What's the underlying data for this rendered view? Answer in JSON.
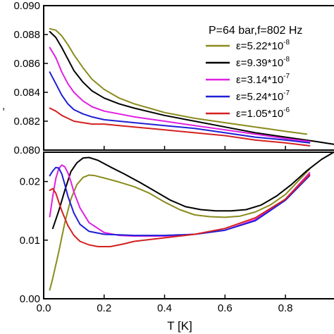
{
  "chart_data": [
    {
      "type": "line",
      "panel": "top",
      "title": "P=64 bar,f=802 Hz",
      "xlabel": "",
      "ylabel": "",
      "xlim": [
        0.0,
        0.97
      ],
      "ylim": [
        0.08,
        0.09
      ],
      "yticks": [
        "0.080",
        "0.082",
        "0.084",
        "0.086",
        "0.088",
        "0.090"
      ],
      "legend_position": "top-right",
      "grid": false,
      "series": [
        {
          "name": "ε=5.22*10",
          "exp": "-8",
          "color": "#8b8b1e",
          "x": [
            0.02,
            0.04,
            0.06,
            0.08,
            0.1,
            0.13,
            0.16,
            0.2,
            0.25,
            0.3,
            0.35,
            0.4,
            0.5,
            0.6,
            0.7,
            0.8,
            0.87
          ],
          "y": [
            0.0884,
            0.0883,
            0.0879,
            0.0873,
            0.0866,
            0.0857,
            0.0849,
            0.0842,
            0.0836,
            0.0832,
            0.0829,
            0.0826,
            0.0822,
            0.0819,
            0.0816,
            0.0813,
            0.0811
          ]
        },
        {
          "name": "ε=9.39*10",
          "exp": "-8",
          "color": "#000000",
          "x": [
            0.02,
            0.04,
            0.06,
            0.08,
            0.1,
            0.13,
            0.16,
            0.2,
            0.25,
            0.3,
            0.4,
            0.5,
            0.6,
            0.7,
            0.8,
            0.9,
            0.96
          ],
          "y": [
            0.0882,
            0.0878,
            0.0871,
            0.0863,
            0.0855,
            0.0847,
            0.0841,
            0.0836,
            0.0832,
            0.0829,
            0.0824,
            0.082,
            0.0816,
            0.0812,
            0.0809,
            0.0806,
            0.0804
          ]
        },
        {
          "name": "ε=3.14*10",
          "exp": "-7",
          "color": "#e020e0",
          "x": [
            0.02,
            0.04,
            0.06,
            0.08,
            0.1,
            0.13,
            0.16,
            0.2,
            0.25,
            0.3,
            0.4,
            0.5,
            0.6,
            0.7,
            0.8,
            0.88
          ],
          "y": [
            0.0871,
            0.0864,
            0.0854,
            0.0846,
            0.084,
            0.0834,
            0.083,
            0.0827,
            0.0825,
            0.0823,
            0.082,
            0.0817,
            0.0814,
            0.0811,
            0.0808,
            0.0806
          ]
        },
        {
          "name": "ε=5.24*10",
          "exp": "-7",
          "color": "#1f1fd6",
          "x": [
            0.02,
            0.04,
            0.06,
            0.08,
            0.1,
            0.13,
            0.16,
            0.2,
            0.25,
            0.3,
            0.4,
            0.5,
            0.6,
            0.7,
            0.8,
            0.88
          ],
          "y": [
            0.0854,
            0.0846,
            0.0838,
            0.0832,
            0.0828,
            0.0825,
            0.0823,
            0.0821,
            0.082,
            0.0819,
            0.0817,
            0.0815,
            0.0812,
            0.0809,
            0.0807,
            0.0805
          ]
        },
        {
          "name": "ε=1.05*10",
          "exp": "-6",
          "color": "#d42020",
          "x": [
            0.02,
            0.04,
            0.06,
            0.08,
            0.1,
            0.13,
            0.16,
            0.2,
            0.25,
            0.3,
            0.4,
            0.5,
            0.6,
            0.7,
            0.8,
            0.88
          ],
          "y": [
            0.0829,
            0.0827,
            0.0824,
            0.0822,
            0.082,
            0.0819,
            0.0818,
            0.0818,
            0.0817,
            0.0816,
            0.0814,
            0.0812,
            0.081,
            0.0807,
            0.0805,
            0.0803
          ]
        }
      ]
    },
    {
      "type": "line",
      "panel": "bottom",
      "title": "",
      "xlabel": "T [K]",
      "ylabel": "",
      "xlim": [
        0.0,
        0.97
      ],
      "ylim": [
        0.0,
        0.025
      ],
      "xticks": [
        "0.0",
        "0.2",
        "0.4",
        "0.6",
        "0.8"
      ],
      "yticks": [
        "0.00",
        "0.01",
        "0.02"
      ],
      "grid": false,
      "series": [
        {
          "name": "ε=5.22*10",
          "exp": "-8",
          "color": "#8b8b1e",
          "x": [
            0.02,
            0.03,
            0.05,
            0.07,
            0.09,
            0.11,
            0.13,
            0.15,
            0.17,
            0.2,
            0.25,
            0.3,
            0.35,
            0.4,
            0.45,
            0.5,
            0.55,
            0.6,
            0.65,
            0.7,
            0.75,
            0.8,
            0.85,
            0.88
          ],
          "y": [
            0.0015,
            0.0035,
            0.008,
            0.013,
            0.017,
            0.0195,
            0.0207,
            0.0211,
            0.021,
            0.0206,
            0.0199,
            0.0191,
            0.018,
            0.0165,
            0.0152,
            0.0143,
            0.014,
            0.0139,
            0.0141,
            0.0148,
            0.016,
            0.0178,
            0.0205,
            0.0221
          ]
        },
        {
          "name": "ε=9.39*10",
          "exp": "-8",
          "color": "#000000",
          "x": [
            0.03,
            0.05,
            0.07,
            0.09,
            0.11,
            0.13,
            0.15,
            0.18,
            0.22,
            0.27,
            0.32,
            0.37,
            0.42,
            0.47,
            0.52,
            0.57,
            0.62,
            0.67,
            0.72,
            0.77,
            0.82,
            0.87,
            0.92,
            0.96
          ],
          "y": [
            0.012,
            0.015,
            0.0185,
            0.0217,
            0.0232,
            0.024,
            0.0241,
            0.0236,
            0.0225,
            0.0212,
            0.0198,
            0.0183,
            0.0168,
            0.0157,
            0.0152,
            0.015,
            0.015,
            0.0152,
            0.016,
            0.0175,
            0.0195,
            0.0218,
            0.0238,
            0.025
          ]
        },
        {
          "name": "ε=3.14*10",
          "exp": "-7",
          "color": "#e020e0",
          "x": [
            0.02,
            0.03,
            0.04,
            0.05,
            0.06,
            0.07,
            0.08,
            0.09,
            0.1,
            0.12,
            0.15,
            0.2,
            0.25,
            0.3,
            0.4,
            0.5,
            0.6,
            0.7,
            0.8,
            0.88
          ],
          "y": [
            0.014,
            0.0175,
            0.0205,
            0.0222,
            0.0228,
            0.0225,
            0.0215,
            0.02,
            0.0182,
            0.0155,
            0.013,
            0.0113,
            0.0108,
            0.0107,
            0.0107,
            0.011,
            0.0117,
            0.0135,
            0.017,
            0.0215
          ]
        },
        {
          "name": "ε=5.24*10",
          "exp": "-7",
          "color": "#1f1fd6",
          "x": [
            0.02,
            0.03,
            0.04,
            0.05,
            0.06,
            0.07,
            0.08,
            0.1,
            0.12,
            0.15,
            0.2,
            0.25,
            0.3,
            0.4,
            0.5,
            0.6,
            0.7,
            0.8,
            0.88
          ],
          "y": [
            0.021,
            0.0218,
            0.0224,
            0.0223,
            0.0213,
            0.0195,
            0.0175,
            0.0146,
            0.0127,
            0.0115,
            0.011,
            0.0109,
            0.0108,
            0.0108,
            0.011,
            0.0117,
            0.0133,
            0.0168,
            0.021
          ]
        },
        {
          "name": "ε=1.05*10",
          "exp": "-6",
          "color": "#d42020",
          "x": [
            0.02,
            0.03,
            0.04,
            0.05,
            0.06,
            0.08,
            0.1,
            0.12,
            0.15,
            0.18,
            0.22,
            0.26,
            0.3,
            0.4,
            0.5,
            0.6,
            0.7,
            0.8,
            0.88
          ],
          "y": [
            0.0185,
            0.0188,
            0.018,
            0.0165,
            0.015,
            0.0125,
            0.0108,
            0.0098,
            0.0092,
            0.0089,
            0.0089,
            0.0093,
            0.0098,
            0.0104,
            0.011,
            0.012,
            0.0138,
            0.017,
            0.0212
          ]
        }
      ]
    }
  ]
}
